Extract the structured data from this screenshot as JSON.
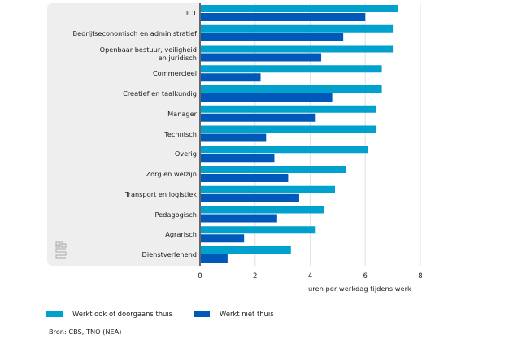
{
  "chart_data": {
    "type": "bar",
    "orientation": "horizontal",
    "title": "",
    "xlabel": "uren per werkdag tijdens werk",
    "ylabel": "",
    "xlim": [
      0,
      8
    ],
    "xticks": [
      0,
      2,
      4,
      6,
      8
    ],
    "grid": true,
    "legend_position": "bottom-left",
    "categories": [
      [
        "ICT"
      ],
      [
        "Bedrijfseconomisch en administratief"
      ],
      [
        "Openbaar bestuur, veiligheid",
        "en juridisch"
      ],
      [
        "Commercieel"
      ],
      [
        "Creatief en taalkundig"
      ],
      [
        "Manager"
      ],
      [
        "Technisch"
      ],
      [
        "Overig"
      ],
      [
        "Zorg en welzijn"
      ],
      [
        "Transport en logistiek"
      ],
      [
        "Pedagogisch"
      ],
      [
        "Agrarisch"
      ],
      [
        "Dienstverlenend"
      ]
    ],
    "series": [
      {
        "name": "Werkt ook of doorgaans thuis",
        "color": "#00a1cd",
        "values": [
          7.2,
          7.0,
          7.0,
          6.6,
          6.6,
          6.4,
          6.4,
          6.1,
          5.3,
          4.9,
          4.5,
          4.2,
          3.3
        ]
      },
      {
        "name": "Werkt niet thuis",
        "color": "#0058b8",
        "values": [
          6.0,
          5.2,
          4.4,
          2.2,
          4.8,
          4.2,
          2.4,
          2.7,
          3.2,
          3.6,
          2.8,
          1.6,
          1.0
        ]
      }
    ],
    "source": "Bron: CBS, TNO (NEA)"
  },
  "logo": {
    "icon": "cbs-logo-icon"
  }
}
